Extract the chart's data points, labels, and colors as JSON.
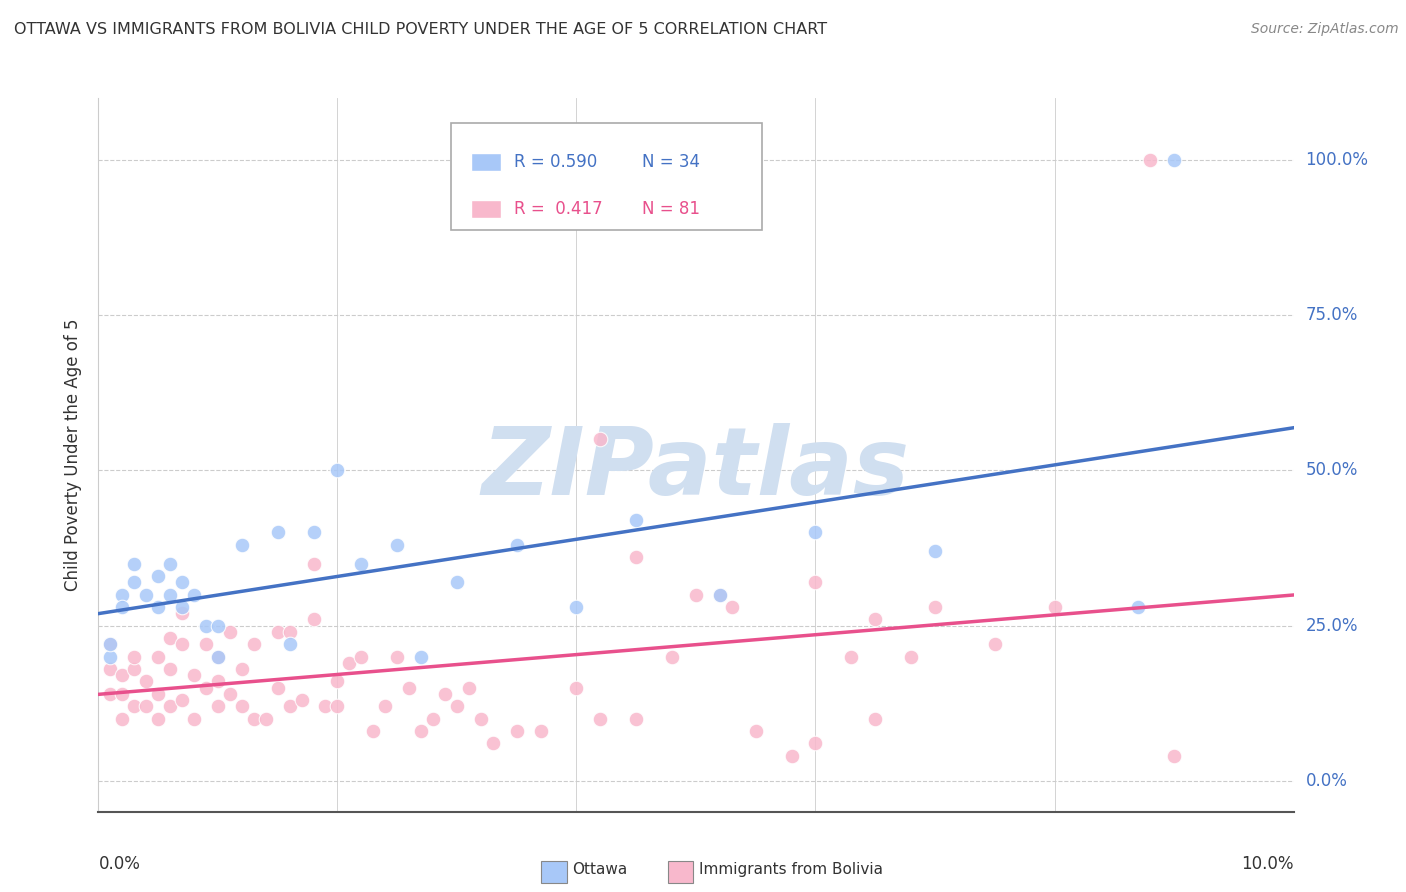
{
  "title": "OTTAWA VS IMMIGRANTS FROM BOLIVIA CHILD POVERTY UNDER THE AGE OF 5 CORRELATION CHART",
  "source": "Source: ZipAtlas.com",
  "ylabel": "Child Poverty Under the Age of 5",
  "ottawa_color": "#a8c8f8",
  "bolivia_color": "#f8b8cc",
  "regression_blue": "#4472c4",
  "regression_pink": "#e8508c",
  "watermark": "ZIPatlas",
  "watermark_color": "#d0dff0",
  "legend_label1": "Ottawa",
  "legend_label2": "Immigrants from Bolivia",
  "R1": "0.590",
  "N1": "34",
  "R2": "0.417",
  "N2": "81",
  "xmin": 0.0,
  "xmax": 0.1,
  "ymin": -0.05,
  "ymax": 1.1,
  "ytick_values": [
    0.0,
    0.25,
    0.5,
    0.75,
    1.0
  ],
  "ytick_labels": [
    "0.0%",
    "25.0%",
    "50.0%",
    "75.0%",
    "100.0%"
  ],
  "ottawa_x": [
    0.001,
    0.001,
    0.002,
    0.002,
    0.003,
    0.003,
    0.004,
    0.005,
    0.005,
    0.006,
    0.006,
    0.007,
    0.007,
    0.008,
    0.009,
    0.01,
    0.01,
    0.012,
    0.015,
    0.016,
    0.018,
    0.02,
    0.022,
    0.025,
    0.027,
    0.03,
    0.035,
    0.04,
    0.045,
    0.052,
    0.06,
    0.07,
    0.087,
    0.09
  ],
  "ottawa_y": [
    0.2,
    0.22,
    0.3,
    0.28,
    0.32,
    0.35,
    0.3,
    0.28,
    0.33,
    0.3,
    0.35,
    0.28,
    0.32,
    0.3,
    0.25,
    0.2,
    0.25,
    0.38,
    0.4,
    0.22,
    0.4,
    0.5,
    0.35,
    0.38,
    0.2,
    0.32,
    0.38,
    0.28,
    0.42,
    0.3,
    0.4,
    0.37,
    0.28,
    1.0
  ],
  "bolivia_x": [
    0.001,
    0.001,
    0.001,
    0.002,
    0.002,
    0.002,
    0.003,
    0.003,
    0.003,
    0.004,
    0.004,
    0.005,
    0.005,
    0.005,
    0.006,
    0.006,
    0.006,
    0.007,
    0.007,
    0.007,
    0.008,
    0.008,
    0.009,
    0.009,
    0.01,
    0.01,
    0.01,
    0.011,
    0.011,
    0.012,
    0.012,
    0.013,
    0.013,
    0.014,
    0.015,
    0.015,
    0.016,
    0.016,
    0.017,
    0.018,
    0.018,
    0.019,
    0.02,
    0.02,
    0.021,
    0.022,
    0.023,
    0.024,
    0.025,
    0.026,
    0.027,
    0.028,
    0.029,
    0.03,
    0.031,
    0.032,
    0.033,
    0.035,
    0.037,
    0.04,
    0.042,
    0.045,
    0.048,
    0.05,
    0.053,
    0.055,
    0.058,
    0.06,
    0.063,
    0.065,
    0.042,
    0.045,
    0.052,
    0.06,
    0.065,
    0.068,
    0.07,
    0.075,
    0.08,
    0.088,
    0.09
  ],
  "bolivia_y": [
    0.14,
    0.18,
    0.22,
    0.1,
    0.14,
    0.17,
    0.12,
    0.18,
    0.2,
    0.12,
    0.16,
    0.1,
    0.14,
    0.2,
    0.12,
    0.18,
    0.23,
    0.13,
    0.22,
    0.27,
    0.1,
    0.17,
    0.15,
    0.22,
    0.12,
    0.16,
    0.2,
    0.14,
    0.24,
    0.12,
    0.18,
    0.1,
    0.22,
    0.1,
    0.15,
    0.24,
    0.12,
    0.24,
    0.13,
    0.26,
    0.35,
    0.12,
    0.16,
    0.12,
    0.19,
    0.2,
    0.08,
    0.12,
    0.2,
    0.15,
    0.08,
    0.1,
    0.14,
    0.12,
    0.15,
    0.1,
    0.06,
    0.08,
    0.08,
    0.15,
    0.1,
    0.1,
    0.2,
    0.3,
    0.28,
    0.08,
    0.04,
    0.06,
    0.2,
    0.1,
    0.55,
    0.36,
    0.3,
    0.32,
    0.26,
    0.2,
    0.28,
    0.22,
    0.28,
    1.0,
    0.04
  ]
}
